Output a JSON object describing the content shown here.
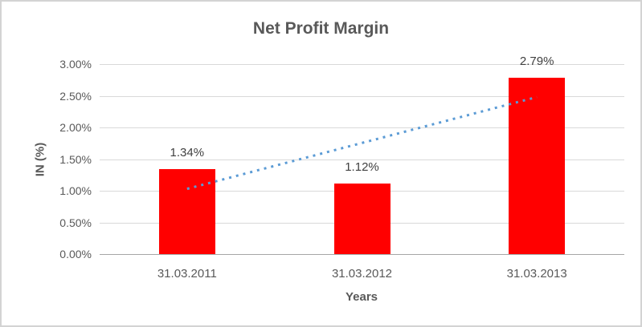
{
  "window": {
    "background": "#ffffff",
    "border_color": "#d3d3d3"
  },
  "chart_data": {
    "type": "bar",
    "title": "Net Profit Margin",
    "xlabel": "Years",
    "ylabel": "IN (%)",
    "categories": [
      "31.03.2011",
      "31.03.2012",
      "31.03.2013"
    ],
    "values": [
      1.34,
      1.12,
      2.79
    ],
    "value_labels": [
      "1.34%",
      "1.12%",
      "2.79%"
    ],
    "ylim": [
      0,
      3
    ],
    "yticks": [
      0,
      0.5,
      1,
      1.5,
      2,
      2.5,
      3
    ],
    "ytick_labels": [
      "0.00%",
      "0.50%",
      "1.00%",
      "1.50%",
      "2.00%",
      "2.50%",
      "3.00%"
    ],
    "grid": "horizontal",
    "legend": "none",
    "bar_color": "#ff0000",
    "trendline": {
      "type": "linear",
      "style": "dotted",
      "color": "#5b9bd5",
      "start_value": 1.03,
      "end_value": 2.48
    },
    "colors": {
      "title": "#595959",
      "axis_labels": "#595959",
      "data_labels": "#404040",
      "gridline": "#d9d9d9",
      "axis_line": "#a6a6a6"
    }
  }
}
